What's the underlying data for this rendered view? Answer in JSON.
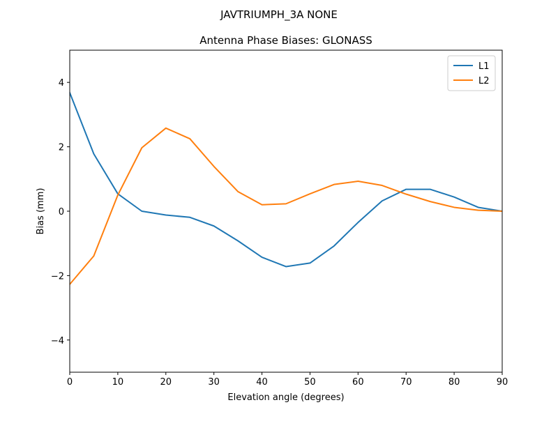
{
  "chart_data": {
    "type": "line",
    "suptitle": "JAVTRIUMPH_3A   NONE",
    "title": "Antenna Phase Biases: GLONASS",
    "xlabel": "Elevation angle (degrees)",
    "ylabel": "Bias (mm)",
    "xlim": [
      0,
      90
    ],
    "ylim": [
      -5,
      5
    ],
    "xticks": [
      0,
      10,
      20,
      30,
      40,
      50,
      60,
      70,
      80,
      90
    ],
    "xtick_labels": [
      "0",
      "10",
      "20",
      "30",
      "40",
      "50",
      "60",
      "70",
      "80",
      "90"
    ],
    "yticks": [
      -4,
      -2,
      0,
      2,
      4
    ],
    "ytick_labels": [
      "−4",
      "−2",
      "0",
      "2",
      "4"
    ],
    "grid": false,
    "legend_position": "top-right",
    "x": [
      0,
      5,
      10,
      15,
      20,
      25,
      30,
      35,
      40,
      45,
      50,
      55,
      60,
      65,
      70,
      75,
      80,
      85,
      90
    ],
    "series": [
      {
        "name": "L1",
        "color": "#1f77b4",
        "values": [
          3.68,
          1.78,
          0.54,
          0.0,
          -0.12,
          -0.19,
          -0.46,
          -0.92,
          -1.43,
          -1.72,
          -1.61,
          -1.08,
          -0.35,
          0.32,
          0.68,
          0.68,
          0.44,
          0.12,
          0.0
        ]
      },
      {
        "name": "L2",
        "color": "#ff7f0e",
        "values": [
          -2.27,
          -1.39,
          0.5,
          1.97,
          2.58,
          2.25,
          1.39,
          0.61,
          0.2,
          0.23,
          0.54,
          0.83,
          0.93,
          0.8,
          0.53,
          0.3,
          0.12,
          0.03,
          0.0
        ]
      }
    ]
  }
}
